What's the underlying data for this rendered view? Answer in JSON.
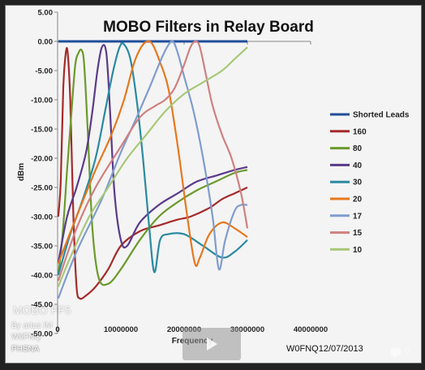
{
  "chart_data": {
    "type": "line",
    "title": "MOBO Filters in Relay Board",
    "xlabel": "Frequency",
    "ylabel": "dBm",
    "xlim": [
      0,
      40000000
    ],
    "ylim": [
      -50,
      5
    ],
    "xticks": [
      0,
      10000000,
      20000000,
      30000000,
      40000000
    ],
    "xtick_labels": [
      "0",
      "10000000",
      "20000000",
      "30000000",
      "40000000"
    ],
    "yticks": [
      5,
      0,
      -5,
      -10,
      -15,
      -20,
      -25,
      -30,
      -35,
      -40,
      -45,
      -50
    ],
    "ytick_labels": [
      "5.00",
      "0.00",
      "-5.00",
      "-10.00",
      "-15.00",
      "-20.00",
      "-25.00",
      "-30.00",
      "-35.00",
      "-40.00",
      "-45.00",
      "-50.00"
    ],
    "grid": false,
    "legend_position": "right",
    "annotation": "W0FNQ12/07/2013",
    "series": [
      {
        "name": "Shorted Leads",
        "color": "#1f4e9a",
        "x": [
          100000,
          5000000,
          10000000,
          15000000,
          20000000,
          25000000,
          30000000
        ],
        "y": [
          0,
          0,
          0,
          0,
          0,
          0,
          0
        ]
      },
      {
        "name": "160",
        "color": "#a52a2a",
        "x": [
          100000,
          500000,
          900000,
          1300000,
          1600000,
          2000000,
          2500000,
          3000000,
          3500000,
          4500000,
          6000000,
          8000000,
          10000000,
          13000000,
          16000000,
          19000000,
          21000000,
          24000000,
          26000000,
          28000000,
          29000000,
          30000000
        ],
        "y": [
          -30,
          -24,
          -8,
          -2,
          -2,
          -10,
          -30,
          -42,
          -44,
          -43.5,
          -42,
          -39,
          -35,
          -32.5,
          -31.5,
          -30.5,
          -30,
          -28.5,
          -27,
          -26,
          -25.5,
          -25
        ]
      },
      {
        "name": "80",
        "color": "#6a9a2a",
        "x": [
          100000,
          800000,
          1500000,
          2200000,
          2800000,
          3300000,
          3800000,
          4200000,
          4800000,
          5500000,
          6500000,
          8000000,
          10000000,
          13000000,
          16000000,
          19000000,
          22000000,
          25000000,
          28000000,
          30000000
        ],
        "y": [
          -40,
          -33,
          -22,
          -12,
          -4,
          -2,
          -1.5,
          -4,
          -16,
          -32,
          -40.5,
          -41.5,
          -39,
          -34,
          -30,
          -27.5,
          -25.5,
          -24,
          -22.5,
          -22
        ]
      },
      {
        "name": "40",
        "color": "#5a3a8a",
        "x": [
          100000,
          1500000,
          3000000,
          4500000,
          5500000,
          6300000,
          7000000,
          7700000,
          8300000,
          9000000,
          10000000,
          11000000,
          13000000,
          16000000,
          19000000,
          22000000,
          25000000,
          28000000,
          30000000
        ],
        "y": [
          -38,
          -30,
          -25,
          -19,
          -12,
          -5,
          -1,
          -2,
          -12,
          -26,
          -34,
          -35,
          -31,
          -28,
          -26,
          -24,
          -23,
          -22,
          -21.5
        ]
      },
      {
        "name": "30",
        "color": "#2a8aa0",
        "x": [
          100000,
          2000000,
          4000000,
          6000000,
          7500000,
          8800000,
          9800000,
          10500000,
          11500000,
          12500000,
          13500000,
          14500000,
          15300000,
          16200000,
          17500000,
          20000000,
          23000000,
          26000000,
          28000000,
          30000000
        ],
        "y": [
          -40,
          -33,
          -27,
          -20,
          -12,
          -5,
          -1,
          -0.5,
          -3,
          -10,
          -20,
          -32,
          -39.5,
          -34,
          -33,
          -33,
          -35,
          -37,
          -36,
          -34
        ]
      },
      {
        "name": "20",
        "color": "#e6781e",
        "x": [
          100000,
          3000000,
          6000000,
          8500000,
          10500000,
          12000000,
          13200000,
          14200000,
          15000000,
          16000000,
          17500000,
          19000000,
          20500000,
          21700000,
          22500000,
          24000000,
          26000000,
          28000000,
          30000000
        ],
        "y": [
          -38,
          -30,
          -22,
          -16,
          -10,
          -4,
          -1,
          0,
          -0.5,
          -3,
          -8,
          -18,
          -30,
          -38,
          -37,
          -33,
          -31,
          -32,
          -33.5
        ]
      },
      {
        "name": "17",
        "color": "#7f9ccf",
        "x": [
          100000,
          3000000,
          7000000,
          10000000,
          12500000,
          14500000,
          16000000,
          17300000,
          18200000,
          19000000,
          20000000,
          21500000,
          23000000,
          24500000,
          25500000,
          26500000,
          28000000,
          29000000,
          30000000
        ],
        "y": [
          -44,
          -36,
          -27,
          -19,
          -13,
          -8,
          -4,
          -1,
          0,
          -2,
          -6,
          -12,
          -20,
          -30,
          -39,
          -34,
          -29,
          -28,
          -28
        ]
      },
      {
        "name": "15",
        "color": "#d08080",
        "x": [
          100000,
          3000000,
          6000000,
          10000000,
          13000000,
          15500000,
          17000000,
          18500000,
          20000000,
          21000000,
          21800000,
          22500000,
          23500000,
          24500000,
          26000000,
          27500000,
          29000000,
          30000000
        ],
        "y": [
          -41,
          -32,
          -25,
          -18,
          -13,
          -11,
          -10,
          -8,
          -4,
          -1,
          0,
          -1,
          -6,
          -11,
          -16,
          -20,
          -26,
          -32
        ]
      },
      {
        "name": "10",
        "color": "#a8c878",
        "x": [
          100000,
          2000000,
          5000000,
          8000000,
          11000000,
          14000000,
          17000000,
          20000000,
          23000000,
          26000000,
          28000000,
          30000000
        ],
        "y": [
          -42,
          -37,
          -30,
          -25,
          -20,
          -16,
          -12,
          -9,
          -7,
          -5,
          -3,
          -1
        ]
      }
    ]
  },
  "overlay": {
    "title": "MOBO FF5",
    "author": "By artus IM",
    "callsign": "W0FNQ",
    "tag": "PHSNA",
    "comment_count": "0"
  }
}
